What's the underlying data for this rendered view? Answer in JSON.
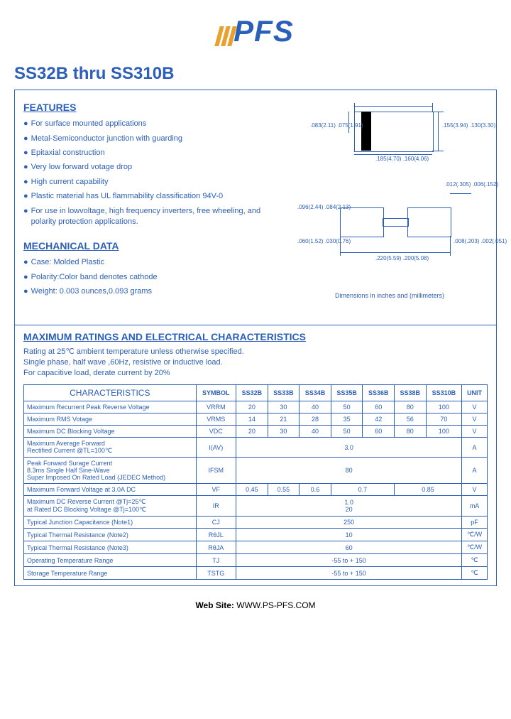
{
  "logo": {
    "text": "PFS"
  },
  "title": "SS32B thru SS310B",
  "features": {
    "heading": "FEATURES",
    "items": [
      "For surface mounted applications",
      "Metal-Semiconductor junction with guarding",
      "Epitaxial construction",
      "Very low forward votage drop",
      "High current capability",
      "Plastic material has UL flammability classification 94V-0",
      "For use in lowvoltage, high frequency inverters, free wheeling, and polarity protection applications."
    ]
  },
  "mechanical": {
    "heading": "MECHANICAL DATA",
    "items": [
      "Case:   Molded Plastic",
      "Polarity:Color band denotes cathode",
      "Weight: 0.003 ounces,0.093 grams"
    ]
  },
  "diagram": {
    "top": {
      "left_dims": ".083(2.11)\n.075(1.91)",
      "right_dims": ".155(3.94)\n.130(3.30)",
      "bottom_dims": ".185(4.70)\n.160(4.06)"
    },
    "bottom": {
      "top_right": ".012(.305)\n.006(.152)",
      "left_upper": ".096(2.44)\n.084(2.13)",
      "left_lower": ".060(1.52)\n.030(0.76)",
      "right_lower": ".008(.203)\n.002(.051)",
      "bottom": ".220(5.59)\n.200(5.08)"
    },
    "caption": "Dimensions in inches and (millimeters)"
  },
  "ratings": {
    "heading": "MAXIMUM RATINGS AND ELECTRICAL CHARACTERISTICS",
    "notes": [
      "Rating at 25℃ ambient temperature unless otherwise specified.",
      "Single phase, half wave ,60Hz, resistive or inductive load.",
      "For capacitive load, derate current by 20%"
    ]
  },
  "table": {
    "char_label": "CHARACTERISTICS",
    "headers": [
      "SYMBOL",
      "SS32B",
      "SS33B",
      "SS34B",
      "SS35B",
      "SS36B",
      "SS38B",
      "SS310B",
      "UNIT"
    ],
    "rows": [
      {
        "label": "Maximum Recurrent Peak Reverse Voltage",
        "sym": "VRRM",
        "vals": [
          "20",
          "30",
          "40",
          "50",
          "60",
          "80",
          "100"
        ],
        "unit": "V",
        "spans": [
          1,
          1,
          1,
          1,
          1,
          1,
          1
        ]
      },
      {
        "label": "Maximum RMS Votage",
        "sym": "VRMS",
        "vals": [
          "14",
          "21",
          "28",
          "35",
          "42",
          "56",
          "70"
        ],
        "unit": "V",
        "spans": [
          1,
          1,
          1,
          1,
          1,
          1,
          1
        ]
      },
      {
        "label": "Maximum DC Blocking Voltage",
        "sym": "VDC",
        "vals": [
          "20",
          "30",
          "40",
          "50",
          "60",
          "80",
          "100"
        ],
        "unit": "V",
        "spans": [
          1,
          1,
          1,
          1,
          1,
          1,
          1
        ]
      },
      {
        "label": "Maximum Average Forward\nRectified Current                         @TL=100℃",
        "sym": "I(AV)",
        "vals": [
          "3.0"
        ],
        "unit": "A",
        "spans": [
          7
        ]
      },
      {
        "label": "Peak Forward Surage Current\n8.3ms Single Half Sine-Wave\nSuper Imposed On Rated Load (JEDEC Method)",
        "sym": "IFSM",
        "vals": [
          "80"
        ],
        "unit": "A",
        "spans": [
          7
        ]
      },
      {
        "label": "Maximum Forward  Voltage  at 3.0A DC",
        "sym": "VF",
        "vals": [
          "0.45",
          "0.55",
          "0.6",
          "0.7",
          "0.85"
        ],
        "unit": "V",
        "spans": [
          1,
          1,
          1,
          2,
          2
        ]
      },
      {
        "label": "Maximum DC Reverse Current      @Tj=25℃\nat Rated DC Blocking Voltage        @Tj=100℃",
        "sym": "IR",
        "vals": [
          "1.0\n20"
        ],
        "unit": "mA",
        "spans": [
          7
        ]
      },
      {
        "label": "Typical Junction  Capacitance (Note1)",
        "sym": "CJ",
        "vals": [
          "250"
        ],
        "unit": "pF",
        "spans": [
          7
        ]
      },
      {
        "label": "Typical Thermal Resistance (Note2)",
        "sym": "RθJL",
        "vals": [
          "10"
        ],
        "unit": "℃/W",
        "spans": [
          7
        ]
      },
      {
        "label": "Typical Thermal Resistance (Note3)",
        "sym": "RθJA",
        "vals": [
          "60"
        ],
        "unit": "℃/W",
        "spans": [
          7
        ]
      },
      {
        "label": "Operating Temperature Range",
        "sym": "TJ",
        "vals": [
          "-55 to + 150"
        ],
        "unit": "℃",
        "spans": [
          7
        ]
      },
      {
        "label": "Storage Temperature Range",
        "sym": "TSTG",
        "vals": [
          "-55 to + 150"
        ],
        "unit": "℃",
        "spans": [
          7
        ]
      }
    ]
  },
  "footer": {
    "label": "Web Site:",
    "url": "WWW.PS-PFS.COM"
  }
}
